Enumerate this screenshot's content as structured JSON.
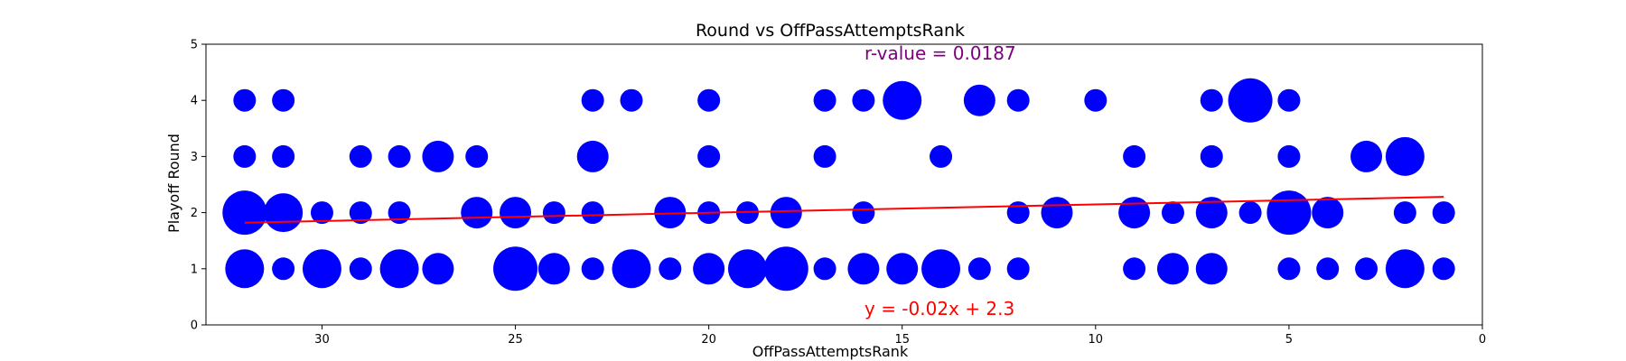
{
  "chart_data": {
    "type": "scatter",
    "title": "Round vs OffPassAttemptsRank",
    "xlabel": "OffPassAttemptsRank",
    "ylabel": "Playoff Round",
    "xlim": [
      33,
      0
    ],
    "ylim": [
      0,
      5
    ],
    "x_ticks": [
      30,
      25,
      20,
      15,
      10,
      5,
      0
    ],
    "y_ticks": [
      0,
      1,
      2,
      3,
      4,
      5
    ],
    "grid": false,
    "point_color": "#0000ff",
    "line_color": "#ff0000",
    "r_value_label": "r-value = 0.0187",
    "r_value_color": "#800080",
    "equation_label": "y = -0.02x + 2.3",
    "equation_color": "#ff0000",
    "trendline": {
      "x": [
        32,
        1
      ],
      "y": [
        1.82,
        2.28
      ]
    },
    "point_count_shown_by_size": true,
    "points": [
      {
        "x": 32,
        "y": 4,
        "n": 1
      },
      {
        "x": 31,
        "y": 4,
        "n": 1
      },
      {
        "x": 23,
        "y": 4,
        "n": 1
      },
      {
        "x": 22,
        "y": 4,
        "n": 1
      },
      {
        "x": 20,
        "y": 4,
        "n": 1
      },
      {
        "x": 17,
        "y": 4,
        "n": 1
      },
      {
        "x": 16,
        "y": 4,
        "n": 1
      },
      {
        "x": 15,
        "y": 4,
        "n": 3
      },
      {
        "x": 13,
        "y": 4,
        "n": 2
      },
      {
        "x": 12,
        "y": 4,
        "n": 1
      },
      {
        "x": 10,
        "y": 4,
        "n": 1
      },
      {
        "x": 7,
        "y": 4,
        "n": 1
      },
      {
        "x": 6,
        "y": 4,
        "n": 4
      },
      {
        "x": 5,
        "y": 4,
        "n": 1
      },
      {
        "x": 32,
        "y": 3,
        "n": 1
      },
      {
        "x": 31,
        "y": 3,
        "n": 1
      },
      {
        "x": 29,
        "y": 3,
        "n": 1
      },
      {
        "x": 28,
        "y": 3,
        "n": 1
      },
      {
        "x": 27,
        "y": 3,
        "n": 2
      },
      {
        "x": 26,
        "y": 3,
        "n": 1
      },
      {
        "x": 23,
        "y": 3,
        "n": 2
      },
      {
        "x": 20,
        "y": 3,
        "n": 1
      },
      {
        "x": 17,
        "y": 3,
        "n": 1
      },
      {
        "x": 14,
        "y": 3,
        "n": 1
      },
      {
        "x": 9,
        "y": 3,
        "n": 1
      },
      {
        "x": 7,
        "y": 3,
        "n": 1
      },
      {
        "x": 5,
        "y": 3,
        "n": 1
      },
      {
        "x": 3,
        "y": 3,
        "n": 2
      },
      {
        "x": 2,
        "y": 3,
        "n": 3
      },
      {
        "x": 32,
        "y": 2,
        "n": 4
      },
      {
        "x": 31,
        "y": 2,
        "n": 3
      },
      {
        "x": 30,
        "y": 2,
        "n": 1
      },
      {
        "x": 29,
        "y": 2,
        "n": 1
      },
      {
        "x": 28,
        "y": 2,
        "n": 1
      },
      {
        "x": 26,
        "y": 2,
        "n": 2
      },
      {
        "x": 25,
        "y": 2,
        "n": 2
      },
      {
        "x": 24,
        "y": 2,
        "n": 1
      },
      {
        "x": 23,
        "y": 2,
        "n": 1
      },
      {
        "x": 21,
        "y": 2,
        "n": 2
      },
      {
        "x": 20,
        "y": 2,
        "n": 1
      },
      {
        "x": 19,
        "y": 2,
        "n": 1
      },
      {
        "x": 18,
        "y": 2,
        "n": 2
      },
      {
        "x": 16,
        "y": 2,
        "n": 1
      },
      {
        "x": 12,
        "y": 2,
        "n": 1
      },
      {
        "x": 11,
        "y": 2,
        "n": 2
      },
      {
        "x": 9,
        "y": 2,
        "n": 2
      },
      {
        "x": 8,
        "y": 2,
        "n": 1
      },
      {
        "x": 7,
        "y": 2,
        "n": 2
      },
      {
        "x": 6,
        "y": 2,
        "n": 1
      },
      {
        "x": 5,
        "y": 2,
        "n": 4
      },
      {
        "x": 4,
        "y": 2,
        "n": 2
      },
      {
        "x": 2,
        "y": 2,
        "n": 1
      },
      {
        "x": 1,
        "y": 2,
        "n": 1
      },
      {
        "x": 32,
        "y": 1,
        "n": 3
      },
      {
        "x": 31,
        "y": 1,
        "n": 1
      },
      {
        "x": 30,
        "y": 1,
        "n": 3
      },
      {
        "x": 29,
        "y": 1,
        "n": 1
      },
      {
        "x": 28,
        "y": 1,
        "n": 3
      },
      {
        "x": 27,
        "y": 1,
        "n": 2
      },
      {
        "x": 25,
        "y": 1,
        "n": 4
      },
      {
        "x": 24,
        "y": 1,
        "n": 2
      },
      {
        "x": 23,
        "y": 1,
        "n": 1
      },
      {
        "x": 22,
        "y": 1,
        "n": 3
      },
      {
        "x": 21,
        "y": 1,
        "n": 1
      },
      {
        "x": 20,
        "y": 1,
        "n": 2
      },
      {
        "x": 19,
        "y": 1,
        "n": 3
      },
      {
        "x": 18,
        "y": 1,
        "n": 4
      },
      {
        "x": 17,
        "y": 1,
        "n": 1
      },
      {
        "x": 16,
        "y": 1,
        "n": 2
      },
      {
        "x": 15,
        "y": 1,
        "n": 2
      },
      {
        "x": 14,
        "y": 1,
        "n": 3
      },
      {
        "x": 13,
        "y": 1,
        "n": 1
      },
      {
        "x": 12,
        "y": 1,
        "n": 1
      },
      {
        "x": 9,
        "y": 1,
        "n": 1
      },
      {
        "x": 8,
        "y": 1,
        "n": 2
      },
      {
        "x": 7,
        "y": 1,
        "n": 2
      },
      {
        "x": 5,
        "y": 1,
        "n": 1
      },
      {
        "x": 4,
        "y": 1,
        "n": 1
      },
      {
        "x": 3,
        "y": 1,
        "n": 1
      },
      {
        "x": 2,
        "y": 1,
        "n": 3
      },
      {
        "x": 1,
        "y": 1,
        "n": 1
      }
    ]
  }
}
